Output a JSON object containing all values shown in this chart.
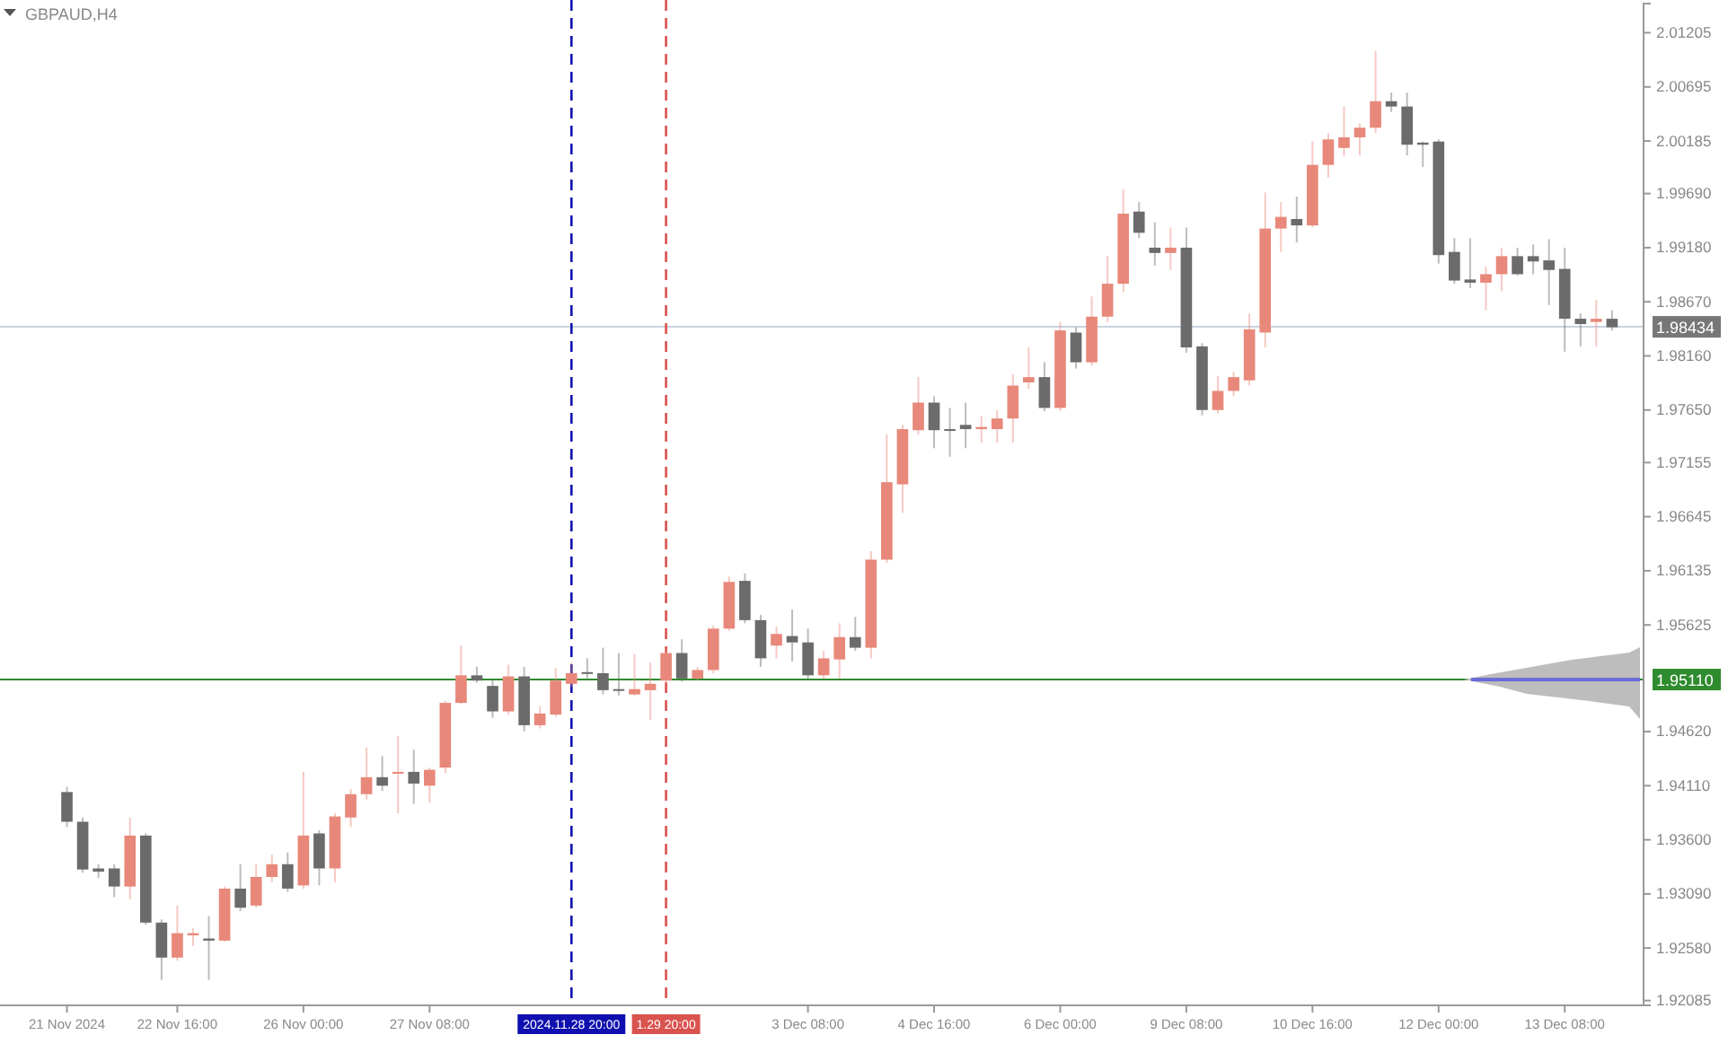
{
  "chart_data": {
    "type": "candlestick",
    "title": "GBPAUD,H4",
    "categories": [
      "21 Nov 2024",
      null,
      null,
      null,
      null,
      null,
      null,
      "22 Nov 16:00",
      null,
      null,
      null,
      null,
      null,
      null,
      null,
      "26 Nov 00:00",
      null,
      null,
      null,
      null,
      null,
      null,
      null,
      "27 Nov 08:00",
      null,
      null,
      null,
      null,
      null,
      null,
      null,
      null,
      "2024.11.28 20:00",
      null,
      null,
      null,
      null,
      null,
      "1.29 20:00",
      null,
      null,
      null,
      null,
      null,
      null,
      null,
      null,
      "3 Dec 08:00",
      null,
      null,
      null,
      null,
      null,
      null,
      null,
      "4 Dec 16:00",
      null,
      null,
      null,
      null,
      null,
      null,
      null,
      "6 Dec 00:00",
      null,
      null,
      null,
      null,
      null,
      null,
      null,
      "9 Dec 08:00",
      null,
      null,
      null,
      null,
      null,
      null,
      null,
      "10 Dec 16:00",
      null,
      null,
      null,
      null,
      null,
      null,
      null,
      "12 Dec 00:00",
      null,
      null,
      null,
      null,
      null,
      null,
      null,
      "13 Dec 08:00",
      null,
      null,
      null
    ],
    "ohlc": [
      [
        1.9405,
        1.941,
        1.9372,
        1.9377
      ],
      [
        1.9377,
        1.9381,
        1.9329,
        1.9332
      ],
      [
        1.9333,
        1.9337,
        1.9324,
        1.933
      ],
      [
        1.9333,
        1.9337,
        1.9306,
        1.9316
      ],
      [
        1.9316,
        1.9381,
        1.9304,
        1.9364
      ],
      [
        1.9364,
        1.9366,
        1.928,
        1.9282
      ],
      [
        1.9282,
        1.9285,
        1.9228,
        1.9249
      ],
      [
        1.9249,
        1.9298,
        1.9246,
        1.9272
      ],
      [
        1.927,
        1.9277,
        1.926,
        1.9272
      ],
      [
        1.9267,
        1.9288,
        1.9228,
        1.9265
      ],
      [
        1.9265,
        1.9316,
        1.9264,
        1.9314
      ],
      [
        1.9314,
        1.9337,
        1.9293,
        1.9296
      ],
      [
        1.9298,
        1.9337,
        1.9296,
        1.9325
      ],
      [
        1.9325,
        1.9346,
        1.932,
        1.9337
      ],
      [
        1.9337,
        1.9348,
        1.9311,
        1.9314
      ],
      [
        1.9317,
        1.9424,
        1.9314,
        1.9364
      ],
      [
        1.9366,
        1.9369,
        1.9317,
        1.9333
      ],
      [
        1.9333,
        1.9385,
        1.932,
        1.9382
      ],
      [
        1.9381,
        1.9408,
        1.9372,
        1.9403
      ],
      [
        1.9403,
        1.9447,
        1.9398,
        1.9419
      ],
      [
        1.9419,
        1.9439,
        1.9406,
        1.9411
      ],
      [
        1.9423,
        1.9458,
        1.9385,
        1.9424
      ],
      [
        1.9424,
        1.9445,
        1.9394,
        1.9413
      ],
      [
        1.9411,
        1.9428,
        1.9395,
        1.9426
      ],
      [
        1.9428,
        1.9491,
        1.9423,
        1.9489
      ],
      [
        1.9489,
        1.9543,
        1.9488,
        1.9515
      ],
      [
        1.9515,
        1.9523,
        1.9508,
        1.951
      ],
      [
        1.9505,
        1.9512,
        1.9475,
        1.9481
      ],
      [
        1.9481,
        1.9525,
        1.9478,
        1.9514
      ],
      [
        1.9514,
        1.9523,
        1.9462,
        1.9468
      ],
      [
        1.9468,
        1.9486,
        1.9465,
        1.9479
      ],
      [
        1.9478,
        1.9522,
        1.9476,
        1.951
      ],
      [
        1.9507,
        1.9527,
        1.9504,
        1.9517
      ],
      [
        1.9518,
        1.9531,
        1.951,
        1.9517
      ],
      [
        1.9517,
        1.9541,
        1.9497,
        1.9501
      ],
      [
        1.9502,
        1.9536,
        1.9496,
        1.9501
      ],
      [
        1.9497,
        1.9535,
        1.9496,
        1.9502
      ],
      [
        1.9501,
        1.9527,
        1.9473,
        1.9507
      ],
      [
        1.951,
        1.9538,
        1.9507,
        1.9536
      ],
      [
        1.9536,
        1.9549,
        1.9509,
        1.9512
      ],
      [
        1.9512,
        1.9523,
        1.951,
        1.952
      ],
      [
        1.952,
        1.9562,
        1.9517,
        1.9559
      ],
      [
        1.9559,
        1.9608,
        1.9557,
        1.9603
      ],
      [
        1.9604,
        1.9611,
        1.9564,
        1.9567
      ],
      [
        1.9567,
        1.9572,
        1.9523,
        1.9531
      ],
      [
        1.9543,
        1.9561,
        1.9531,
        1.9554
      ],
      [
        1.9552,
        1.9577,
        1.9528,
        1.9546
      ],
      [
        1.9546,
        1.9559,
        1.9512,
        1.9515
      ],
      [
        1.9515,
        1.9538,
        1.9512,
        1.9531
      ],
      [
        1.953,
        1.9564,
        1.9512,
        1.9551
      ],
      [
        1.9551,
        1.957,
        1.9538,
        1.9541
      ],
      [
        1.9541,
        1.9632,
        1.9531,
        1.9624
      ],
      [
        1.9624,
        1.9742,
        1.9621,
        1.9697
      ],
      [
        1.9695,
        1.9751,
        1.9668,
        1.9747
      ],
      [
        1.9746,
        1.9796,
        1.9742,
        1.9772
      ],
      [
        1.9772,
        1.9778,
        1.9729,
        1.9746
      ],
      [
        1.9747,
        1.9767,
        1.9721,
        1.9746
      ],
      [
        1.9751,
        1.9772,
        1.9729,
        1.9747
      ],
      [
        1.9747,
        1.9759,
        1.9734,
        1.9749
      ],
      [
        1.9747,
        1.9765,
        1.9734,
        1.9757
      ],
      [
        1.9757,
        1.9799,
        1.9734,
        1.9788
      ],
      [
        1.9791,
        1.9824,
        1.9785,
        1.9796
      ],
      [
        1.9796,
        1.981,
        1.9764,
        1.9767
      ],
      [
        1.9767,
        1.9848,
        1.9764,
        1.984
      ],
      [
        1.9838,
        1.9843,
        1.9804,
        1.981
      ],
      [
        1.981,
        1.9872,
        1.9807,
        1.9853
      ],
      [
        1.9853,
        1.991,
        1.9848,
        1.9884
      ],
      [
        1.9884,
        1.9973,
        1.9876,
        1.995
      ],
      [
        1.9952,
        1.9961,
        1.9927,
        1.9932
      ],
      [
        1.9918,
        1.9942,
        1.9901,
        1.9913
      ],
      [
        1.9913,
        1.9937,
        1.9897,
        1.9918
      ],
      [
        1.9918,
        1.9937,
        1.9819,
        1.9824
      ],
      [
        1.9825,
        1.9828,
        1.976,
        1.9765
      ],
      [
        1.9765,
        1.9797,
        1.9762,
        1.9783
      ],
      [
        1.9783,
        1.9801,
        1.9778,
        1.9796
      ],
      [
        1.9793,
        1.9856,
        1.9788,
        1.9841
      ],
      [
        1.9838,
        1.997,
        1.9824,
        1.9936
      ],
      [
        1.9936,
        1.9961,
        1.9914,
        1.9947
      ],
      [
        1.9945,
        1.9966,
        1.9923,
        1.9939
      ],
      [
        1.9939,
        2.0018,
        1.9937,
        1.9996
      ],
      [
        1.9996,
        2.0026,
        1.9984,
        2.002
      ],
      [
        2.0012,
        2.0051,
        2.0004,
        2.0022
      ],
      [
        2.0022,
        2.0035,
        2.0005,
        2.0031
      ],
      [
        2.0031,
        2.0103,
        2.0026,
        2.0056
      ],
      [
        2.0056,
        2.0064,
        2.0046,
        2.0051
      ],
      [
        2.0051,
        2.0064,
        2.0005,
        2.0015
      ],
      [
        2.0017,
        2.0018,
        1.9994,
        2.0015
      ],
      [
        2.0018,
        2.002,
        1.9903,
        1.9911
      ],
      [
        1.9914,
        1.9927,
        1.9884,
        1.9887
      ],
      [
        1.9888,
        1.9927,
        1.988,
        1.9885
      ],
      [
        1.9885,
        1.99,
        1.9859,
        1.9893
      ],
      [
        1.9893,
        1.9918,
        1.9877,
        1.991
      ],
      [
        1.991,
        1.9918,
        1.9892,
        1.9893
      ],
      [
        1.991,
        1.9921,
        1.9893,
        1.9905
      ],
      [
        1.9906,
        1.9926,
        1.9864,
        1.9897
      ],
      [
        1.9898,
        1.9918,
        1.982,
        1.9851
      ],
      [
        1.9851,
        1.9856,
        1.9825,
        1.9846
      ],
      [
        1.9848,
        1.9869,
        1.9825,
        1.9851
      ],
      [
        1.9851,
        1.9859,
        1.984,
        1.9843
      ]
    ],
    "colors": [
      "#6b6b6b",
      "#6b6b6b",
      "#6b6b6b",
      "#6b6b6b",
      "#e8887a",
      "#6b6b6b",
      "#6b6b6b",
      "#e8887a",
      "#e8887a",
      "#6b6b6b",
      "#e8887a",
      "#6b6b6b",
      "#e8887a",
      "#e8887a",
      "#6b6b6b",
      "#e8887a",
      "#6b6b6b",
      "#e8887a",
      "#e8887a",
      "#e8887a",
      "#6b6b6b",
      "#e8887a",
      "#6b6b6b",
      "#e8887a",
      "#e8887a",
      "#e8887a",
      "#6b6b6b",
      "#6b6b6b",
      "#e8887a",
      "#6b6b6b",
      "#e8887a",
      "#e8887a",
      "#e8887a",
      "#6b6b6b",
      "#6b6b6b",
      "#6b6b6b",
      "#e8887a",
      "#e8887a",
      "#e8887a",
      "#6b6b6b",
      "#e8887a",
      "#e8887a",
      "#e8887a",
      "#6b6b6b",
      "#6b6b6b",
      "#e8887a",
      "#6b6b6b",
      "#6b6b6b",
      "#e8887a",
      "#e8887a",
      "#6b6b6b",
      "#e8887a",
      "#e8887a",
      "#e8887a",
      "#e8887a",
      "#6b6b6b",
      "#6b6b6b",
      "#6b6b6b",
      "#e8887a",
      "#e8887a",
      "#e8887a",
      "#e8887a",
      "#6b6b6b",
      "#e8887a",
      "#6b6b6b",
      "#e8887a",
      "#e8887a",
      "#e8887a",
      "#6b6b6b",
      "#6b6b6b",
      "#e8887a",
      "#6b6b6b",
      "#6b6b6b",
      "#e8887a",
      "#e8887a",
      "#e8887a",
      "#e8887a",
      "#e8887a",
      "#6b6b6b",
      "#e8887a",
      "#e8887a",
      "#e8887a",
      "#e8887a",
      "#e8887a",
      "#6b6b6b",
      "#6b6b6b",
      "#6b6b6b",
      "#6b6b6b",
      "#6b6b6b",
      "#6b6b6b",
      "#e8887a",
      "#e8887a",
      "#6b6b6b",
      "#6b6b6b",
      "#6b6b6b",
      "#6b6b6b",
      "#6b6b6b",
      "#e8887a",
      "#6b6b6b"
    ],
    "ylim": [
      1.9204,
      2.0148
    ],
    "yticks": [
      {
        "value": 2.01205,
        "label": "2.01205"
      },
      {
        "value": 2.00695,
        "label": "2.00695"
      },
      {
        "value": 2.00185,
        "label": "2.00185"
      },
      {
        "value": 1.9969,
        "label": "1.99690"
      },
      {
        "value": 1.9918,
        "label": "1.99180"
      },
      {
        "value": 1.9867,
        "label": "1.98670"
      },
      {
        "value": 1.9816,
        "label": "1.98160"
      },
      {
        "value": 1.9765,
        "label": "1.97650"
      },
      {
        "value": 1.97155,
        "label": "1.97155"
      },
      {
        "value": 1.96645,
        "label": "1.96645"
      },
      {
        "value": 1.96135,
        "label": "1.96135"
      },
      {
        "value": 1.95625,
        "label": "1.95625"
      },
      {
        "value": 1.9462,
        "label": "1.94620"
      },
      {
        "value": 1.9411,
        "label": "1.94110"
      },
      {
        "value": 1.936,
        "label": "1.93600"
      },
      {
        "value": 1.9309,
        "label": "1.93090"
      },
      {
        "value": 1.9258,
        "label": "1.92580"
      },
      {
        "value": 1.92085,
        "label": "1.92085"
      }
    ],
    "ref_lines": [
      {
        "axis": "y",
        "value": 1.98434,
        "label": "1.98434",
        "color": "#c9d3df",
        "line_style": "solid"
      },
      {
        "axis": "y",
        "value": 1.9511,
        "label": "1.95110",
        "color": "#2e8b2e",
        "line_style": "solid"
      },
      {
        "axis": "x",
        "value": "2024.11.28 20:00",
        "color": "#1010b0",
        "line_style": "dashed"
      },
      {
        "axis": "x",
        "value": "1.29 20:00",
        "color": "#d9534f",
        "line_style": "dashed"
      }
    ]
  }
}
